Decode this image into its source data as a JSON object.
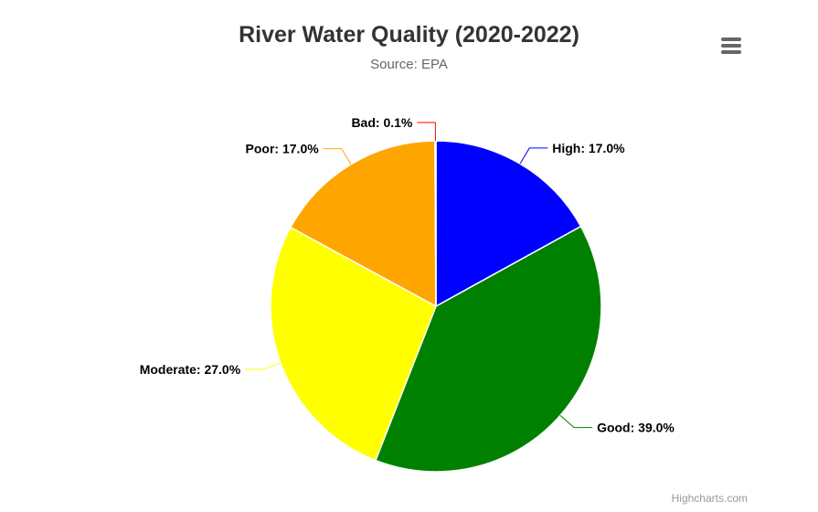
{
  "chart": {
    "title": "River Water Quality (2020-2022)",
    "subtitle": "Source: EPA",
    "credits": "Highcharts.com",
    "menu_icon": "hamburger-menu-icon"
  },
  "chart_data": {
    "type": "pie",
    "title": "River Water Quality (2020-2022)",
    "subtitle": "Source: EPA",
    "categories": [
      "High",
      "Good",
      "Moderate",
      "Poor",
      "Bad"
    ],
    "values": [
      17.0,
      39.0,
      27.0,
      17.0,
      0.1
    ],
    "labels": [
      "High: 17.0%",
      "Good: 39.0%",
      "Moderate: 27.0%",
      "Poor: 17.0%",
      "Bad: 0.1%"
    ],
    "colors": [
      "#0000ff",
      "#008000",
      "#ffff00",
      "#ffa500",
      "#ff0000"
    ],
    "unit": "%"
  }
}
